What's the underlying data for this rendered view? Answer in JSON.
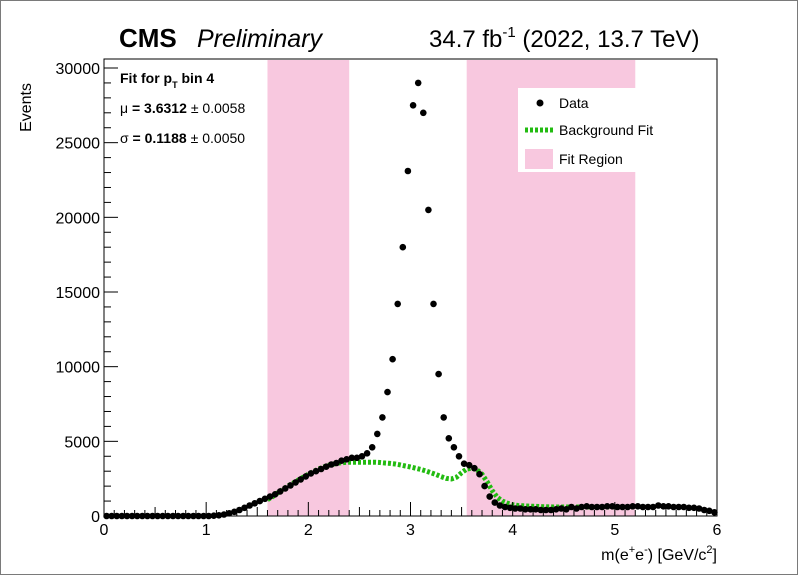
{
  "header": {
    "experiment": "CMS",
    "status": "Preliminary",
    "lumi": "34.7 fb",
    "lumi_exp": "-1",
    "conditions": "(2022, 13.7 TeV)"
  },
  "fit_box": {
    "title": "Fit for p",
    "title_sub": "T",
    "title_end": " bin 4",
    "mu_symbol": "μ",
    "mu_value": " = 3.6312",
    "mu_error": "± 0.0058",
    "sigma_symbol": "σ",
    "sigma_value": " = 0.1188",
    "sigma_error": "± 0.0050"
  },
  "colors": {
    "data": "#000000",
    "background_fit": "#22bb11",
    "fit_region": "#f8c8df"
  },
  "chart_data": {
    "type": "scatter",
    "title": "",
    "ylabel": "Events",
    "xlabel_parts": [
      "m(e",
      "+",
      "e",
      "-",
      ") [GeV/c",
      "2",
      "]"
    ],
    "xlim": [
      0,
      6
    ],
    "ylim": [
      0,
      31000
    ],
    "xticks": [
      "0",
      "1",
      "2",
      "3",
      "4",
      "5",
      "6"
    ],
    "yticks": [
      "0",
      "5000",
      "10000",
      "15000",
      "20000",
      "25000",
      "30000"
    ],
    "fit_regions": [
      [
        1.6,
        2.4
      ],
      [
        3.55,
        5.2
      ]
    ],
    "legend": {
      "position": "top-right",
      "items": [
        {
          "label": "Data",
          "kind": "marker"
        },
        {
          "label": "Background Fit",
          "kind": "dashed-line"
        },
        {
          "label": "Fit Region",
          "kind": "fill"
        }
      ]
    },
    "series": [
      {
        "name": "Data",
        "x": [
          0.025,
          0.075,
          0.125,
          0.175,
          0.225,
          0.275,
          0.325,
          0.375,
          0.425,
          0.475,
          0.525,
          0.575,
          0.625,
          0.675,
          0.725,
          0.775,
          0.825,
          0.875,
          0.925,
          0.975,
          1.025,
          1.075,
          1.125,
          1.175,
          1.225,
          1.275,
          1.325,
          1.375,
          1.425,
          1.475,
          1.525,
          1.575,
          1.625,
          1.675,
          1.725,
          1.775,
          1.825,
          1.875,
          1.925,
          1.975,
          2.025,
          2.075,
          2.125,
          2.175,
          2.225,
          2.275,
          2.325,
          2.375,
          2.425,
          2.475,
          2.525,
          2.575,
          2.625,
          2.675,
          2.725,
          2.775,
          2.825,
          2.875,
          2.925,
          2.975,
          3.025,
          3.075,
          3.125,
          3.175,
          3.225,
          3.275,
          3.325,
          3.375,
          3.425,
          3.475,
          3.525,
          3.575,
          3.625,
          3.675,
          3.725,
          3.775,
          3.825,
          3.875,
          3.925,
          3.975,
          4.025,
          4.075,
          4.125,
          4.175,
          4.225,
          4.275,
          4.325,
          4.375,
          4.425,
          4.475,
          4.525,
          4.575,
          4.625,
          4.675,
          4.725,
          4.775,
          4.825,
          4.875,
          4.925,
          4.975,
          5.025,
          5.075,
          5.125,
          5.175,
          5.225,
          5.275,
          5.325,
          5.375,
          5.425,
          5.475,
          5.525,
          5.575,
          5.625,
          5.675,
          5.725,
          5.775,
          5.825,
          5.875,
          5.925,
          5.975
        ],
        "y": [
          0,
          0,
          0,
          0,
          0,
          0,
          0,
          0,
          0,
          0,
          0,
          0,
          0,
          0,
          0,
          0,
          0,
          0,
          0,
          0,
          0,
          20,
          50,
          100,
          180,
          280,
          400,
          550,
          700,
          850,
          1000,
          1150,
          1300,
          1450,
          1650,
          1850,
          2050,
          2250,
          2450,
          2650,
          2850,
          3000,
          3150,
          3300,
          3450,
          3550,
          3700,
          3800,
          3900,
          3900,
          4000,
          4200,
          4600,
          5500,
          6600,
          8300,
          10500,
          14200,
          18000,
          23100,
          27500,
          29000,
          27000,
          20500,
          14200,
          9500,
          6600,
          5200,
          4600,
          4000,
          3500,
          3400,
          3200,
          2800,
          2000,
          1300,
          900,
          700,
          600,
          550,
          500,
          500,
          450,
          450,
          450,
          400,
          400,
          400,
          450,
          500,
          450,
          600,
          500,
          600,
          650,
          600,
          600,
          600,
          650,
          650,
          600,
          600,
          600,
          650,
          650,
          600,
          600,
          600,
          700,
          650,
          650,
          600,
          600,
          600,
          550,
          550,
          500,
          400,
          350,
          250
        ]
      },
      {
        "name": "Background Fit",
        "x": [
          1.6,
          1.65,
          1.7,
          1.75,
          1.8,
          1.85,
          1.9,
          1.95,
          2.0,
          2.05,
          2.1,
          2.15,
          2.2,
          2.25,
          2.3,
          2.35,
          2.4,
          2.45,
          2.5,
          2.55,
          2.6,
          2.65,
          2.7,
          2.75,
          2.8,
          2.85,
          2.9,
          2.95,
          3.0,
          3.05,
          3.1,
          3.15,
          3.2,
          3.25,
          3.3,
          3.35,
          3.4,
          3.45,
          3.5,
          3.55,
          3.6,
          3.65,
          3.7,
          3.75,
          3.8,
          3.85,
          3.9,
          3.95,
          4.0,
          4.05,
          4.1,
          4.2,
          4.3,
          4.4,
          4.5,
          4.6,
          4.7,
          4.8,
          4.9,
          5.0,
          5.1,
          5.2
        ],
        "y": [
          1100,
          1300,
          1550,
          1780,
          2000,
          2200,
          2400,
          2600,
          2800,
          2980,
          3150,
          3280,
          3400,
          3480,
          3550,
          3580,
          3600,
          3600,
          3600,
          3600,
          3600,
          3600,
          3580,
          3550,
          3520,
          3480,
          3420,
          3350,
          3280,
          3200,
          3120,
          3020,
          2900,
          2780,
          2640,
          2520,
          2480,
          2600,
          2900,
          3150,
          3200,
          3100,
          2800,
          2300,
          1700,
          1250,
          1000,
          850,
          750,
          700,
          680,
          650,
          620,
          600,
          600,
          600,
          600,
          600,
          600,
          600,
          600,
          600
        ]
      }
    ]
  }
}
